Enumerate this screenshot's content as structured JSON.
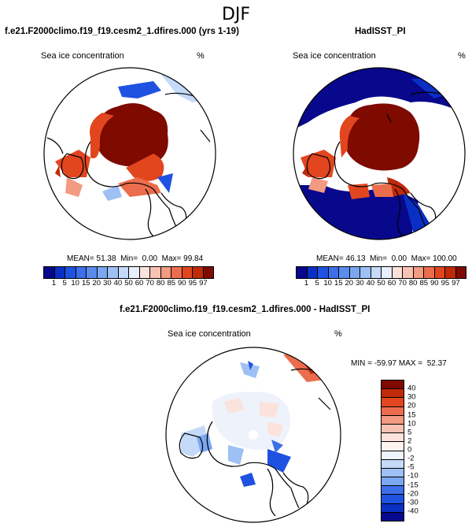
{
  "figure": {
    "title": "DJF"
  },
  "panels": [
    {
      "title": "f.e21.F2000climo.f19_f19.cesm2_1.dfires.000 (yrs 1-19)",
      "variable": "Sea ice concentration",
      "units": "%",
      "stats": "MEAN= 51.38  Min=  0.00  Max= 99.84"
    },
    {
      "title": "HadISST_PI",
      "variable": "Sea ice concentration",
      "units": "%",
      "stats": "MEAN= 46.13  Min=  0.00  Max= 100.00"
    },
    {
      "title": "f.e21.F2000climo.f19_f19.cesm2_1.dfires.000 - HadISST_PI",
      "variable": "Sea ice concentration",
      "units": "%",
      "stats": "MIN = -59.97 MAX =  52.37"
    }
  ],
  "colorbar_abs": {
    "labels": [
      "1",
      "5",
      "10",
      "15",
      "20",
      "30",
      "40",
      "50",
      "60",
      "70",
      "80",
      "85",
      "90",
      "95",
      "97"
    ],
    "colors": [
      "#08088c",
      "#0a2fc4",
      "#1f52e0",
      "#3d6fe8",
      "#5b8ced",
      "#7aa7f0",
      "#9ec0f4",
      "#c5d9f8",
      "#e8eefb",
      "#fbe3dc",
      "#f8c2b2",
      "#f29a82",
      "#ec6d4d",
      "#e2461f",
      "#c02a08",
      "#7e0a00"
    ]
  },
  "colorbar_diff": {
    "labels": [
      "40",
      "30",
      "20",
      "15",
      "10",
      "5",
      "2",
      "0",
      "-2",
      "-5",
      "-10",
      "-15",
      "-20",
      "-30",
      "-40"
    ],
    "colors": [
      "#7e0a00",
      "#c02a08",
      "#e2461f",
      "#ec6d4d",
      "#f29a82",
      "#f8c2b2",
      "#fbe3dc",
      "#fdf3ef",
      "#eef2fb",
      "#c5d9f8",
      "#9ec0f4",
      "#7aa7f0",
      "#3d6fe8",
      "#1f52e0",
      "#0a2fc4",
      "#08088c"
    ]
  }
}
